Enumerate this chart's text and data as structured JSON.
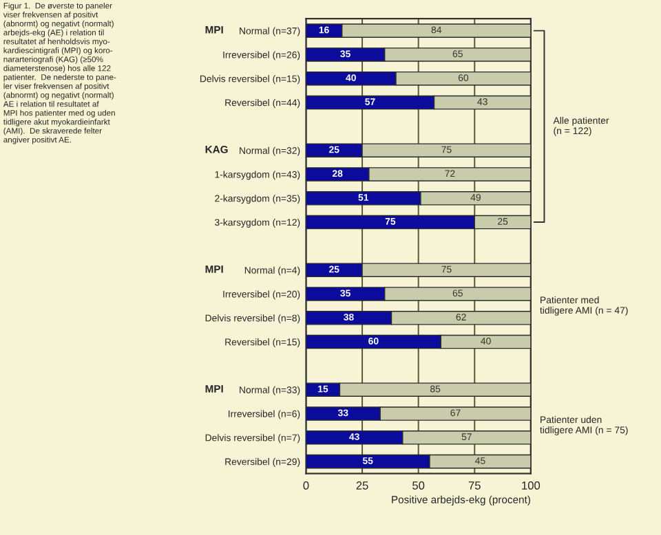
{
  "chart_data": {
    "type": "bar",
    "orientation": "horizontal",
    "stacked": true,
    "categories": [
      "Normal (n=37)",
      "Irreversibel (n=26)",
      "Delvis reversibel (n=15)",
      "Reversibel (n=44)",
      null,
      "Normal (n=32)",
      "1-karsygdom (n=43)",
      "2-karsygdom (n=35)",
      "3-karsygdom (n=12)",
      null,
      "Normal (n=4)",
      "Irreversibel (n=20)",
      "Delvis reversibel (n=8)",
      "Reversibel (n=15)",
      null,
      "Normal (n=33)",
      "Irreversibel (n=6)",
      "Delvis reversibel (n=7)",
      "Reversibel (n=29)"
    ],
    "series": [
      {
        "color": "#0c0c9c",
        "values": [
          16,
          35,
          40,
          57,
          null,
          25,
          28,
          51,
          75,
          null,
          25,
          35,
          38,
          60,
          null,
          15,
          33,
          43,
          55
        ]
      },
      {
        "color": "#c9ccaa",
        "values": [
          84,
          65,
          60,
          43,
          null,
          75,
          72,
          49,
          25,
          null,
          75,
          65,
          62,
          40,
          null,
          85,
          67,
          57,
          45
        ]
      }
    ],
    "data_labels": true,
    "xlim": [
      0,
      100
    ],
    "xticks": [
      0,
      25,
      50,
      75,
      100
    ],
    "grid": "x",
    "xlabel": "Positive arbejds-ekg (procent)",
    "annotations": [
      "Figur 1.  De øverste to paneler\nviser frekvensen af positivt\n(abnormt) og negativt (normalt)\narbejds-ekg (AE) i relation til\nresultatet af henholdsvis myo-\nkardiescintigrafi (MPI) og koro-\nnararteriografi (KAG) (≥50%\ndiameterstenose) hos alle 122\npatienter.  De nederste to pane-\nler viser frekvensen af positivt\n(abnormt) og negativt (normalt)\nAE i relation til resultatet af\nMPI hos patienter med og uden\ntidligere akut myokardieinfarkt\n(AMI).  De skraverede felter\nangiver positivt AE.",
      "MPI",
      "KAG",
      "MPI",
      "MPI",
      "Alle patienter\n(n = 122)",
      "Patienter med\ntidligere AMI (n = 47)",
      "Patienter uden\ntidligere AMI (n = 75)"
    ]
  }
}
